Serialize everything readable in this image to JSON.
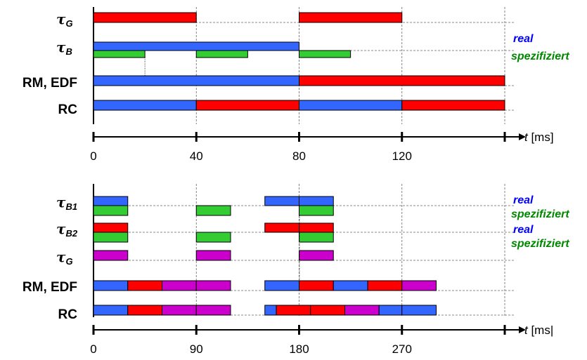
{
  "colors": {
    "blue": "#3366ff",
    "red": "#ff0000",
    "green": "#33cc33",
    "magenta": "#cc00cc"
  },
  "panels": [
    {
      "axis_label": "t",
      "axis_unit": "[ms]",
      "ticks": [
        0,
        40,
        80,
        120,
        160
      ],
      "tick_labels": [
        "0",
        "40",
        "80",
        "120",
        ""
      ],
      "xmax": 160,
      "rows": [
        {
          "label": "τ",
          "sub": "G",
          "lanes": [
            [
              {
                "s": 0,
                "e": 40,
                "c": "red"
              },
              {
                "s": 80,
                "e": 120,
                "c": "red"
              }
            ]
          ]
        },
        {
          "label": "τ",
          "sub": "B",
          "lanes": [
            [
              {
                "s": 0,
                "e": 80,
                "c": "blue"
              }
            ],
            [
              {
                "s": 0,
                "e": 20,
                "c": "green"
              },
              {
                "s": 40,
                "e": 60,
                "c": "green"
              },
              {
                "s": 80,
                "e": 100,
                "c": "green"
              }
            ]
          ]
        },
        {
          "label": "RM, EDF",
          "sub": "",
          "lanes": [
            [
              {
                "s": 0,
                "e": 80,
                "c": "blue"
              },
              {
                "s": 80,
                "e": 160,
                "c": "red"
              }
            ]
          ]
        },
        {
          "label": "RC",
          "sub": "",
          "lanes": [
            [
              {
                "s": 0,
                "e": 40,
                "c": "blue"
              },
              {
                "s": 40,
                "e": 80,
                "c": "red"
              },
              {
                "s": 80,
                "e": 120,
                "c": "blue"
              },
              {
                "s": 120,
                "e": 160,
                "c": "red"
              }
            ]
          ]
        }
      ],
      "legend": [
        {
          "text": "real",
          "c": "blue"
        },
        {
          "text": "spezifiziert",
          "c": "green"
        }
      ]
    },
    {
      "axis_label": "t",
      "axis_unit": "[ms|",
      "ticks": [
        0,
        90,
        180,
        270,
        360
      ],
      "tick_labels": [
        "0",
        "90",
        "180",
        "270",
        ""
      ],
      "xmax": 360,
      "rows": [
        {
          "label": "τ",
          "sub": "B1",
          "lanes": [
            [
              {
                "s": 0,
                "e": 30,
                "c": "blue"
              },
              {
                "s": 150,
                "e": 180,
                "c": "blue"
              },
              {
                "s": 180,
                "e": 210,
                "c": "blue"
              }
            ],
            [
              {
                "s": 0,
                "e": 30,
                "c": "green"
              },
              {
                "s": 90,
                "e": 120,
                "c": "green"
              },
              {
                "s": 180,
                "e": 210,
                "c": "green"
              }
            ]
          ]
        },
        {
          "label": "τ",
          "sub": "B2",
          "lanes": [
            [
              {
                "s": 0,
                "e": 30,
                "c": "red"
              },
              {
                "s": 150,
                "e": 180,
                "c": "red"
              },
              {
                "s": 180,
                "e": 210,
                "c": "red"
              }
            ],
            [
              {
                "s": 0,
                "e": 30,
                "c": "green"
              },
              {
                "s": 90,
                "e": 120,
                "c": "green"
              },
              {
                "s": 180,
                "e": 210,
                "c": "green"
              }
            ]
          ]
        },
        {
          "label": "τ",
          "sub": "G",
          "lanes": [
            [
              {
                "s": 0,
                "e": 30,
                "c": "magenta"
              },
              {
                "s": 90,
                "e": 120,
                "c": "magenta"
              },
              {
                "s": 180,
                "e": 210,
                "c": "magenta"
              }
            ]
          ]
        },
        {
          "label": "RM, EDF",
          "sub": "",
          "lanes": [
            [
              {
                "s": 0,
                "e": 30,
                "c": "blue"
              },
              {
                "s": 30,
                "e": 60,
                "c": "red"
              },
              {
                "s": 60,
                "e": 90,
                "c": "magenta"
              },
              {
                "s": 90,
                "e": 120,
                "c": "magenta"
              },
              {
                "s": 150,
                "e": 180,
                "c": "blue"
              },
              {
                "s": 180,
                "e": 210,
                "c": "red"
              },
              {
                "s": 210,
                "e": 240,
                "c": "blue"
              },
              {
                "s": 240,
                "e": 270,
                "c": "red"
              },
              {
                "s": 270,
                "e": 300,
                "c": "magenta"
              }
            ]
          ]
        },
        {
          "label": "RC",
          "sub": "",
          "lanes": [
            [
              {
                "s": 0,
                "e": 30,
                "c": "blue"
              },
              {
                "s": 30,
                "e": 60,
                "c": "red"
              },
              {
                "s": 60,
                "e": 90,
                "c": "magenta"
              },
              {
                "s": 90,
                "e": 120,
                "c": "magenta"
              },
              {
                "s": 150,
                "e": 160,
                "c": "blue"
              },
              {
                "s": 160,
                "e": 190,
                "c": "red"
              },
              {
                "s": 190,
                "e": 220,
                "c": "red"
              },
              {
                "s": 220,
                "e": 250,
                "c": "magenta"
              },
              {
                "s": 250,
                "e": 270,
                "c": "blue"
              },
              {
                "s": 270,
                "e": 300,
                "c": "blue"
              }
            ]
          ]
        }
      ],
      "legend": [
        {
          "text": "real",
          "c": "blue"
        },
        {
          "text": "spezifiziert",
          "c": "green"
        },
        {
          "text": "real",
          "c": "blue"
        },
        {
          "text": "spezifiziert",
          "c": "green"
        }
      ]
    }
  ]
}
